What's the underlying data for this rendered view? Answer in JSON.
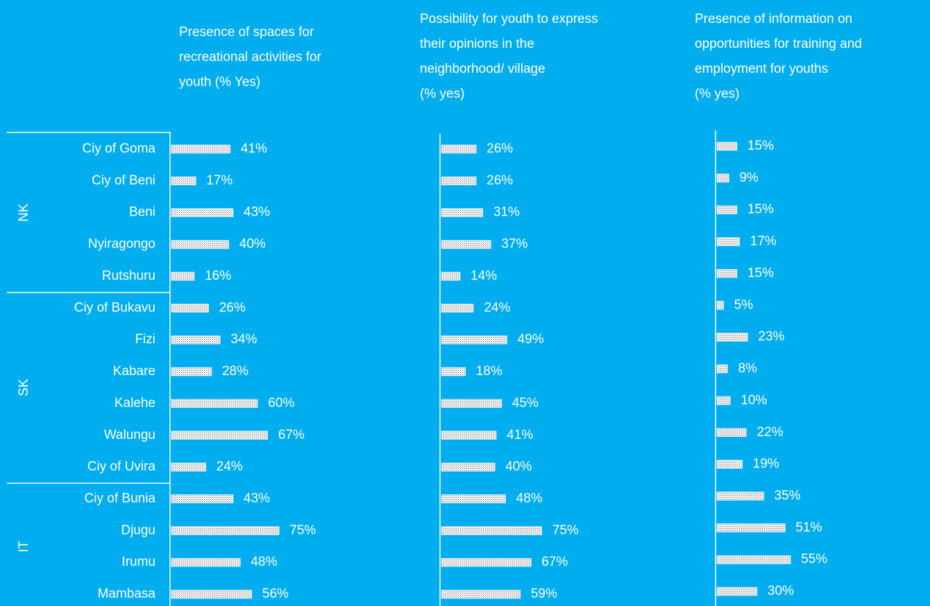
{
  "chart_data": [
    {
      "type": "bar",
      "title": "Presence of spaces for\nrecreational activities for\nyouth (% Yes)",
      "groups": [
        {
          "name": "NK",
          "categories": [
            "Ciy of Goma",
            "Ciy of Beni",
            "Beni",
            "Nyiragongo",
            "Rutshuru"
          ]
        },
        {
          "name": "SK",
          "categories": [
            "Ciy of Bukavu",
            "Fizi",
            "Kabare",
            "Kalehe",
            "Walungu",
            "Ciy of Uvira"
          ]
        },
        {
          "name": "IT",
          "categories": [
            "Ciy of Bunia",
            "Djugu",
            "Irumu",
            "Mambasa"
          ]
        }
      ],
      "values": [
        41,
        17,
        43,
        40,
        16,
        26,
        34,
        28,
        60,
        67,
        24,
        43,
        75,
        48,
        56
      ],
      "value_labels": [
        "41%",
        "17%",
        "43%",
        "40%",
        "16%",
        "26%",
        "34%",
        "28%",
        "60%",
        "67%",
        "24%",
        "43%",
        "75%",
        "48%",
        "56%"
      ]
    },
    {
      "type": "bar",
      "title": "Possibility for youth to express\ntheir opinions in the\nneighborhood/ village\n(% yes)",
      "values": [
        26,
        26,
        31,
        37,
        14,
        24,
        49,
        18,
        45,
        41,
        40,
        48,
        75,
        67,
        59
      ],
      "value_labels": [
        "26%",
        "26%",
        "31%",
        "37%",
        "14%",
        "24%",
        "49%",
        "18%",
        "45%",
        "41%",
        "40%",
        "48%",
        "75%",
        "67%",
        "59%"
      ]
    },
    {
      "type": "bar",
      "title": "Presence of information on\nopportunities for training and\nemployment for youths\n(% yes)",
      "values": [
        15,
        9,
        15,
        17,
        15,
        5,
        23,
        8,
        10,
        22,
        19,
        35,
        51,
        55,
        30
      ],
      "value_labels": [
        "15%",
        "9%",
        "15%",
        "17%",
        "15%",
        "5%",
        "23%",
        "8%",
        "10%",
        "22%",
        "19%",
        "35%",
        "51%",
        "55%",
        "30%"
      ]
    }
  ]
}
